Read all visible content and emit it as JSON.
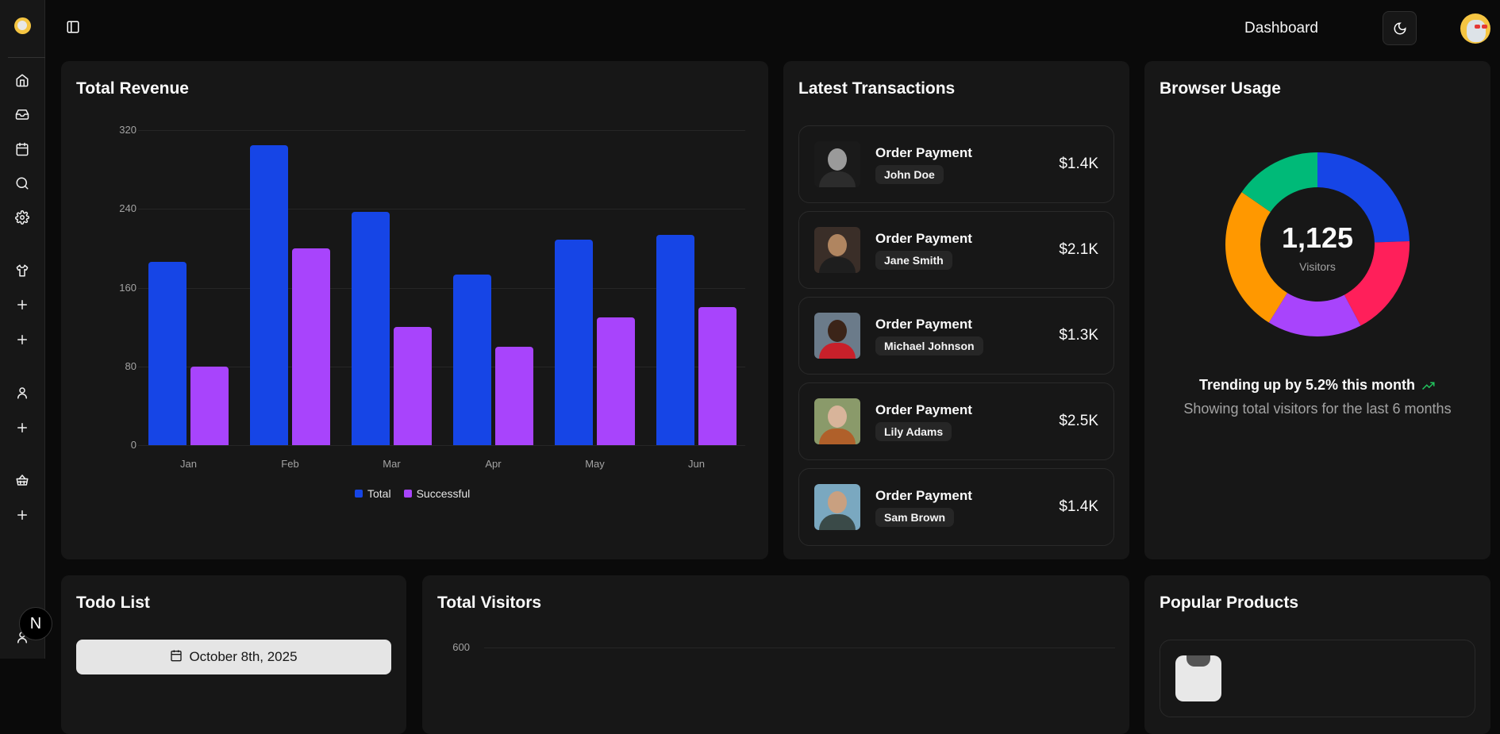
{
  "header": {
    "title": "Dashboard",
    "theme_toggle": "moon-icon"
  },
  "sidebar": {
    "items": [
      {
        "name": "home",
        "icon": "home-icon"
      },
      {
        "name": "inbox",
        "icon": "inbox-icon"
      },
      {
        "name": "calendar",
        "icon": "calendar-icon"
      },
      {
        "name": "search",
        "icon": "search-icon"
      },
      {
        "name": "settings",
        "icon": "gear-icon"
      },
      {
        "name": "products",
        "icon": "shirt-icon"
      },
      {
        "name": "add-1",
        "icon": "plus-icon"
      },
      {
        "name": "add-2",
        "icon": "plus-icon"
      },
      {
        "name": "users",
        "icon": "user-icon"
      },
      {
        "name": "add-3",
        "icon": "plus-icon"
      },
      {
        "name": "orders",
        "icon": "basket-icon"
      },
      {
        "name": "add-4",
        "icon": "plus-icon"
      }
    ],
    "badge": "N"
  },
  "revenue": {
    "title": "Total Revenue",
    "legend": [
      "Total",
      "Successful"
    ]
  },
  "chart_data": [
    {
      "type": "bar",
      "title": "Total Revenue",
      "categories": [
        "Jan",
        "Feb",
        "Mar",
        "Apr",
        "May",
        "Jun"
      ],
      "series": [
        {
          "name": "Total",
          "color": "#1645e6",
          "values": [
            186,
            305,
            237,
            173,
            209,
            214
          ]
        },
        {
          "name": "Successful",
          "color": "#a844fc",
          "values": [
            80,
            200,
            120,
            100,
            130,
            140
          ]
        }
      ],
      "yticks": [
        0,
        80,
        160,
        240,
        320
      ],
      "ylim": [
        0,
        320
      ],
      "grid": true,
      "legend_position": "bottom"
    },
    {
      "type": "pie",
      "title": "Browser Usage",
      "donut": true,
      "center_value": "1,125",
      "center_label": "Visitors",
      "slices": [
        {
          "color": "#1645e6",
          "value": 275
        },
        {
          "color": "#ff1f5a",
          "value": 200
        },
        {
          "color": "#a844fc",
          "value": 187
        },
        {
          "color": "#ff9800",
          "value": 290
        },
        {
          "color": "#00ba78",
          "value": 173
        }
      ]
    },
    {
      "type": "area",
      "title": "Total Visitors",
      "yticks": [
        600
      ]
    }
  ],
  "transactions": {
    "title": "Latest Transactions",
    "items": [
      {
        "label": "Order Payment",
        "name": "John Doe",
        "amount": "$1.4K"
      },
      {
        "label": "Order Payment",
        "name": "Jane Smith",
        "amount": "$2.1K"
      },
      {
        "label": "Order Payment",
        "name": "Michael Johnson",
        "amount": "$1.3K"
      },
      {
        "label": "Order Payment",
        "name": "Lily Adams",
        "amount": "$2.5K"
      },
      {
        "label": "Order Payment",
        "name": "Sam Brown",
        "amount": "$1.4K"
      }
    ]
  },
  "browser": {
    "title": "Browser Usage",
    "total": "1,125",
    "total_label": "Visitors",
    "trend": "Trending up by 5.2% this month",
    "subtitle": "Showing total visitors for the last 6 months"
  },
  "todo": {
    "title": "Todo List",
    "date": "October 8th, 2025"
  },
  "visitors": {
    "title": "Total Visitors",
    "ytick_top": "600"
  },
  "popular": {
    "title": "Popular Products"
  }
}
